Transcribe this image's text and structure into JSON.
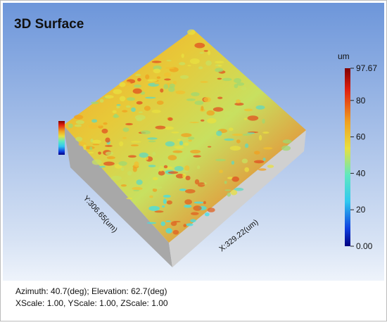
{
  "header": {
    "title": "3D Surface"
  },
  "surface": {
    "x_axis_label": "X:329.22(um)",
    "y_axis_label": "Y:306.65(um)"
  },
  "colorbar": {
    "unit": "um",
    "ticks": [
      {
        "value": 97.67,
        "label": "97.67"
      },
      80,
      60,
      40,
      20,
      {
        "value": 0,
        "label": "0.00"
      }
    ]
  },
  "info": {
    "view": "Azimuth: 40.7(deg); Elevation: 62.7(deg)",
    "scale": "XScale: 1.00, YScale: 1.00, ZScale: 1.00"
  }
}
